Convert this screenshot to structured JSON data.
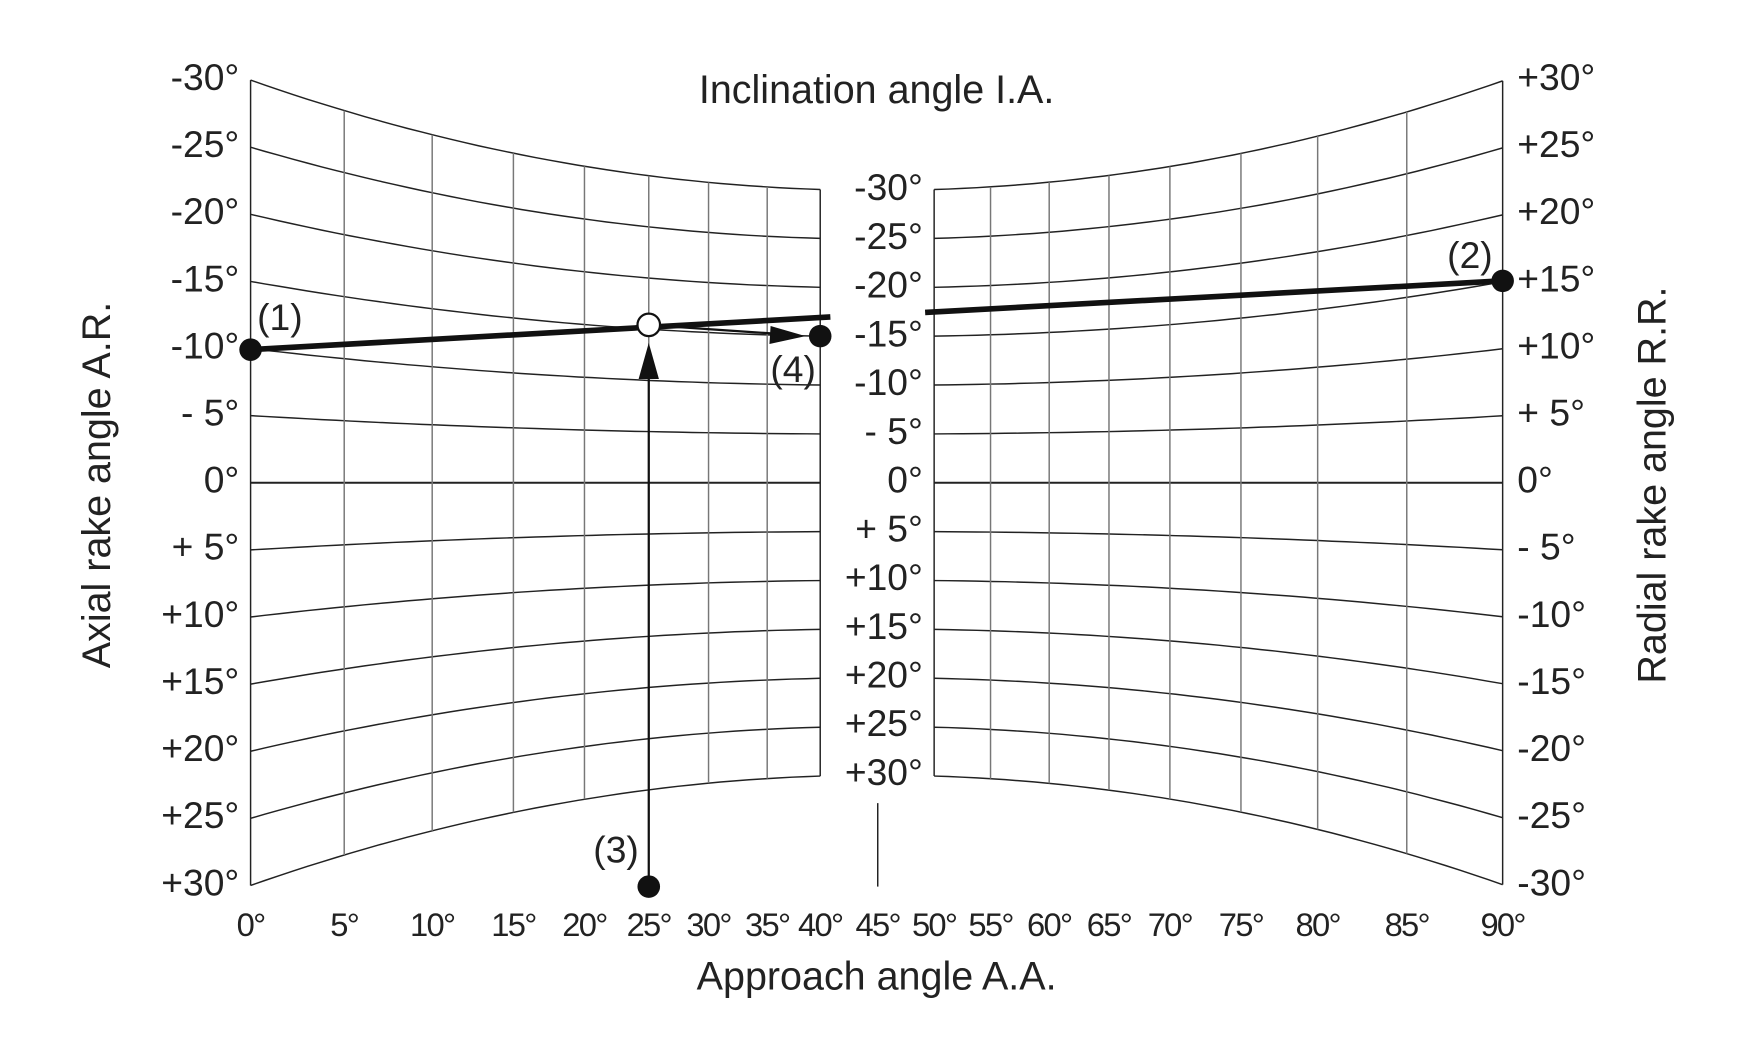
{
  "title": "Inclination angle I.A.",
  "x_axis_title": "Approach angle A.A.",
  "left_axis_title": "Axial rake angle A.R.",
  "right_axis_title": "Radial rake angle R.R.",
  "left_labels": [
    "-30°",
    "-25°",
    "-20°",
    "-15°",
    "-10°",
    "- 5°",
    "0°",
    "+ 5°",
    "+10°",
    "+15°",
    "+20°",
    "+25°",
    "+30°"
  ],
  "center_labels": [
    "-30°",
    "-25°",
    "-20°",
    "-15°",
    "-10°",
    "- 5°",
    "0°",
    "+ 5°",
    "+10°",
    "+15°",
    "+20°",
    "+25°",
    "+30°"
  ],
  "right_labels": [
    "+30°",
    "+25°",
    "+20°",
    "+15°",
    "+10°",
    "+ 5°",
    "0°",
    "- 5°",
    "-10°",
    "-15°",
    "-20°",
    "-25°",
    "-30°"
  ],
  "bottom_labels": [
    "0°",
    "5°",
    "10°",
    "15°",
    "20°",
    "25°",
    "30°",
    "35°",
    "40°",
    "45°",
    "50°",
    "55°",
    "60°",
    "65°",
    "70°",
    "75°",
    "80°",
    "85°",
    "90°"
  ],
  "points": [
    "(1)",
    "(2)",
    "(3)",
    "(4)"
  ]
}
